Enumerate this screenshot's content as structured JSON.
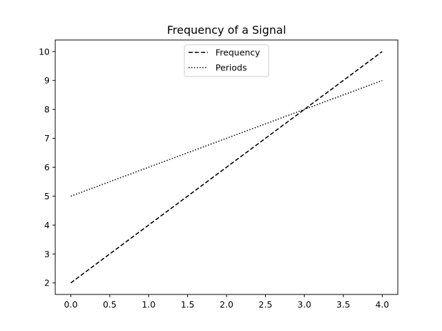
{
  "chart_data": {
    "type": "line",
    "title": "Frequency of a Signal",
    "xlabel": "",
    "ylabel": "",
    "xlim": [
      -0.2,
      4.2
    ],
    "ylim": [
      1.6,
      10.4
    ],
    "x_ticks": [
      0.0,
      0.5,
      1.0,
      1.5,
      2.0,
      2.5,
      3.0,
      3.5,
      4.0
    ],
    "x_tick_labels": [
      "0.0",
      "0.5",
      "1.0",
      "1.5",
      "2.0",
      "2.5",
      "3.0",
      "3.5",
      "4.0"
    ],
    "y_ticks": [
      2,
      3,
      4,
      5,
      6,
      7,
      8,
      9,
      10
    ],
    "y_tick_labels": [
      "2",
      "3",
      "4",
      "5",
      "6",
      "7",
      "8",
      "9",
      "10"
    ],
    "grid": false,
    "legend_position": "top-center",
    "series": [
      {
        "name": "Frequency",
        "style": "dashed",
        "color": "#000000",
        "x": [
          0,
          1,
          2,
          3,
          4
        ],
        "y": [
          2,
          4,
          6,
          8,
          10
        ]
      },
      {
        "name": "Periods",
        "style": "dotted",
        "color": "#000000",
        "x": [
          0,
          1,
          2,
          3,
          4
        ],
        "y": [
          5,
          6,
          7,
          8,
          9
        ]
      }
    ]
  }
}
